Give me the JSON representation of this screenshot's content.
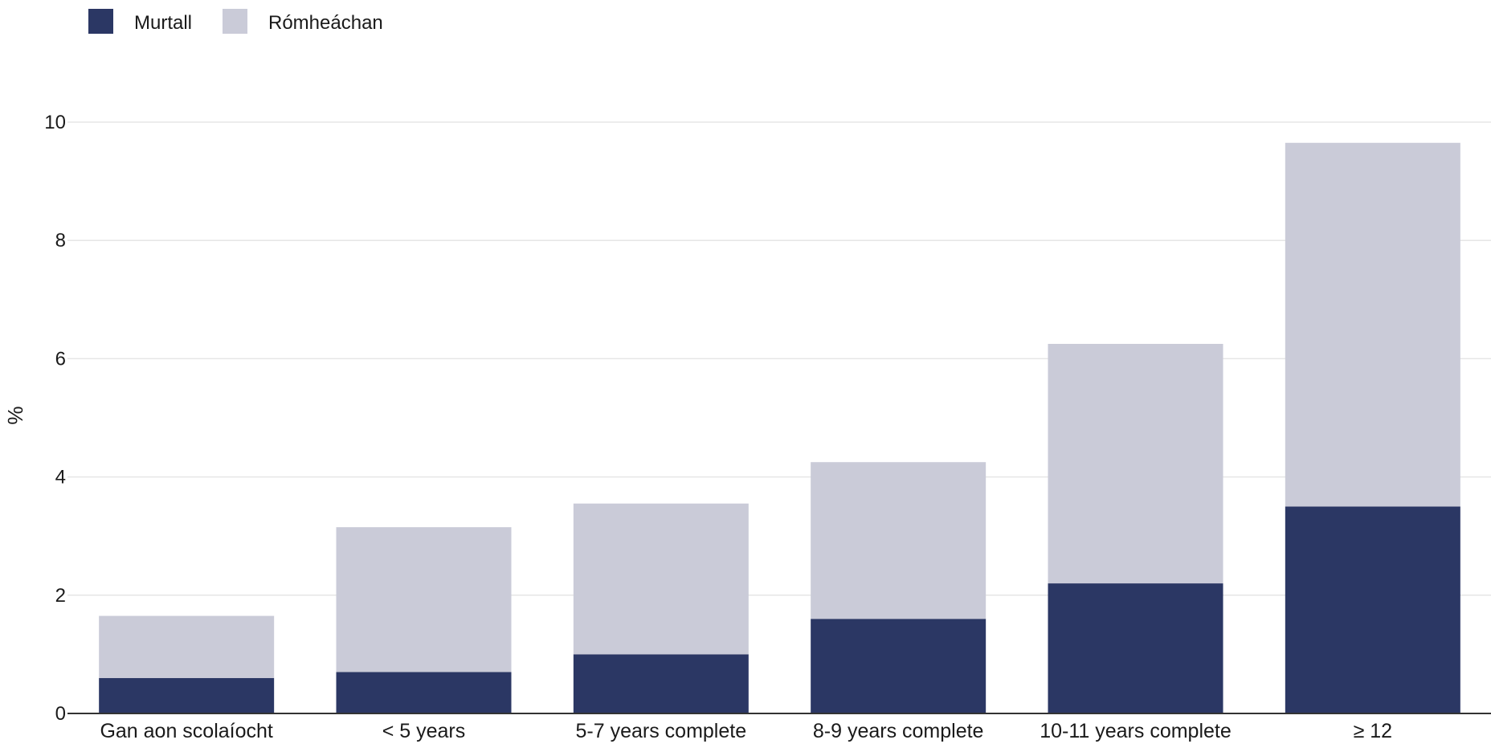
{
  "chart_data": {
    "type": "bar",
    "stacked": true,
    "categories": [
      "Gan aon scolaíocht",
      "< 5 years",
      "5-7 years complete",
      "8-9 years complete",
      "10-11 years complete",
      "≥ 12"
    ],
    "series": [
      {
        "name": "Murtall",
        "color": "#2b3764",
        "values": [
          0.6,
          0.7,
          1.0,
          1.6,
          2.2,
          3.5
        ]
      },
      {
        "name": "Rómheáchan",
        "color": "#cacbd8",
        "values": [
          1.05,
          2.45,
          2.55,
          2.65,
          4.05,
          6.15
        ]
      }
    ],
    "ylabel": "%",
    "xlabel": "",
    "ylim": [
      0,
      10
    ],
    "yticks": [
      0,
      2,
      4,
      6,
      8,
      10
    ],
    "grid": true,
    "legend_position": "top-left"
  }
}
